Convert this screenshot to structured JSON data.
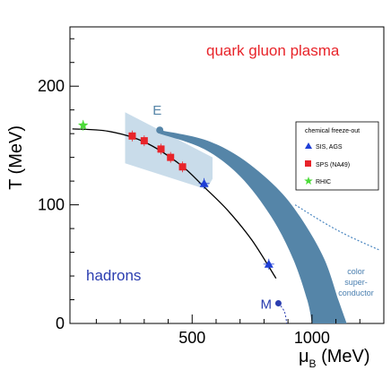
{
  "chart_data": {
    "type": "scatter",
    "xlabel_main": "μ",
    "xlabel_sub": "B",
    "xlabel_unit": " (MeV)",
    "ylabel": "T (MeV)",
    "xlim": [
      -10,
      1300
    ],
    "ylim": [
      0,
      250
    ],
    "x_ticks": [
      500,
      1000
    ],
    "y_ticks": [
      0,
      100,
      200
    ],
    "regions": {
      "qgp": "quark gluon plasma",
      "hadrons": "hadrons",
      "csc": [
        "color",
        "super-",
        "conductor"
      ]
    },
    "points_labels": {
      "E": "E",
      "M": "M"
    },
    "legend": {
      "title": "chemical freeze-out",
      "position": "right",
      "entries": [
        {
          "name": "SIS, AGS",
          "marker": "triangle",
          "color": "#1f3fd6"
        },
        {
          "name": "SPS (NA49)",
          "marker": "square",
          "color": "#e8242a"
        },
        {
          "name": "RHIC",
          "marker": "star",
          "color": "#4ddc3a"
        }
      ]
    },
    "series": [
      {
        "name": "SIS, AGS",
        "points": [
          [
            550,
            118
          ],
          [
            820,
            50
          ]
        ]
      },
      {
        "name": "SPS (NA49)",
        "points": [
          [
            250,
            158
          ],
          [
            300,
            154
          ],
          [
            370,
            147
          ],
          [
            410,
            140
          ],
          [
            460,
            132
          ]
        ]
      },
      {
        "name": "RHIC",
        "points": [
          [
            45,
            167
          ]
        ]
      }
    ],
    "freezeout_curve": [
      [
        0,
        164
      ],
      [
        150,
        162
      ],
      [
        300,
        153
      ],
      [
        450,
        134
      ],
      [
        550,
        115
      ],
      [
        650,
        95
      ],
      [
        750,
        70
      ],
      [
        850,
        38
      ]
    ],
    "critical_point_E": [
      365,
      163
    ],
    "point_M": [
      860,
      17
    ],
    "transition_band": {
      "upper": [
        [
          365,
          163
        ],
        [
          550,
          155
        ],
        [
          700,
          140
        ],
        [
          850,
          115
        ],
        [
          950,
          90
        ],
        [
          1050,
          55
        ],
        [
          1110,
          20
        ],
        [
          1145,
          0
        ]
      ],
      "lower": [
        [
          365,
          160
        ],
        [
          550,
          147
        ],
        [
          700,
          124
        ],
        [
          830,
          90
        ],
        [
          920,
          55
        ],
        [
          980,
          20
        ],
        [
          1000,
          0
        ]
      ]
    },
    "crossover_band": {
      "upper": [
        [
          220,
          178
        ],
        [
          585,
          140
        ],
        [
          585,
          122
        ]
      ],
      "lower": [
        [
          220,
          135
        ],
        [
          560,
          113
        ]
      ]
    },
    "csc_boundary": [
      [
        930,
        100
      ],
      [
        1050,
        85
      ],
      [
        1150,
        74
      ],
      [
        1280,
        62
      ]
    ],
    "m_tail": [
      [
        860,
        17
      ],
      [
        885,
        10
      ],
      [
        895,
        0
      ]
    ],
    "colors": {
      "band": "#5585a8",
      "crossover": "#c9dcea",
      "dashed": "#4a86c0",
      "curve": "#000000",
      "E": "#5585a8",
      "M": "#2a3db0"
    }
  }
}
